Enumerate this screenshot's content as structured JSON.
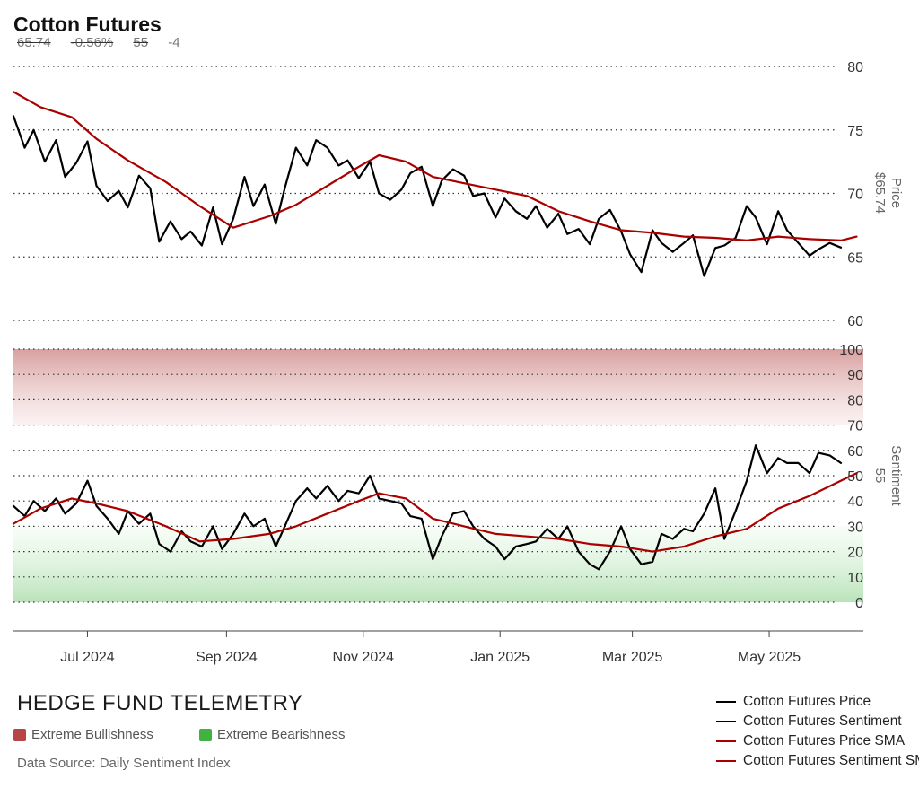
{
  "header": {
    "title": "Cotton Futures",
    "price": "65.74",
    "change_pct": "-0.56%",
    "sentiment": "55",
    "sentiment_change": "-4"
  },
  "footer": {
    "brand": "HEDGE FUND TELEMETRY",
    "extreme_bullish_label": "Extreme Bullishness",
    "extreme_bearish_label": "Extreme Bearishness",
    "source": "Data Source: Daily Sentiment Index"
  },
  "colors": {
    "price_line": "#000000",
    "sma_line": "#aa0000",
    "bullish": "#b84545",
    "bearish": "#3fb23f"
  },
  "legend": [
    {
      "label": "Cotton Futures Price",
      "color": "#000000"
    },
    {
      "label": "Cotton Futures Sentiment",
      "color": "#000000"
    },
    {
      "label": "Cotton Futures Price SMA",
      "color": "#aa0000"
    },
    {
      "label": "Cotton Futures Sentiment SMA",
      "color": "#aa0000"
    }
  ],
  "chart_data": [
    {
      "type": "line",
      "panel": "price",
      "ylabel": "Price",
      "last_value_label": "$65.74",
      "ylim": [
        60,
        80
      ],
      "yticks": [
        60,
        65,
        70,
        75,
        80
      ],
      "grid": "dotted horizontal",
      "x_range": [
        "2024-05-29",
        "2025-06-12"
      ],
      "x_ticks": [
        {
          "date": "2024-07-01",
          "label": "Jul 2024"
        },
        {
          "date": "2024-09-01",
          "label": "Sep 2024"
        },
        {
          "date": "2024-11-01",
          "label": "Nov 2024"
        },
        {
          "date": "2025-01-01",
          "label": "Jan 2025"
        },
        {
          "date": "2025-03-01",
          "label": "Mar 2025"
        },
        {
          "date": "2025-05-01",
          "label": "May 2025"
        }
      ],
      "series": [
        {
          "name": "Cotton Futures Price",
          "points": [
            [
              "2024-05-29",
              76.1
            ],
            [
              "2024-06-03",
              73.6
            ],
            [
              "2024-06-07",
              75.0
            ],
            [
              "2024-06-12",
              72.5
            ],
            [
              "2024-06-17",
              74.2
            ],
            [
              "2024-06-21",
              71.3
            ],
            [
              "2024-06-26",
              72.4
            ],
            [
              "2024-07-01",
              74.1
            ],
            [
              "2024-07-05",
              70.6
            ],
            [
              "2024-07-10",
              69.4
            ],
            [
              "2024-07-15",
              70.2
            ],
            [
              "2024-07-19",
              68.9
            ],
            [
              "2024-07-24",
              71.4
            ],
            [
              "2024-07-29",
              70.4
            ],
            [
              "2024-08-02",
              66.2
            ],
            [
              "2024-08-07",
              67.8
            ],
            [
              "2024-08-12",
              66.4
            ],
            [
              "2024-08-16",
              67.0
            ],
            [
              "2024-08-21",
              65.9
            ],
            [
              "2024-08-26",
              68.9
            ],
            [
              "2024-08-30",
              66.0
            ],
            [
              "2024-09-04",
              68.0
            ],
            [
              "2024-09-09",
              71.3
            ],
            [
              "2024-09-13",
              69.0
            ],
            [
              "2024-09-18",
              70.7
            ],
            [
              "2024-09-23",
              67.6
            ],
            [
              "2024-09-27",
              70.4
            ],
            [
              "2024-10-02",
              73.6
            ],
            [
              "2024-10-07",
              72.2
            ],
            [
              "2024-10-11",
              74.2
            ],
            [
              "2024-10-16",
              73.6
            ],
            [
              "2024-10-21",
              72.2
            ],
            [
              "2024-10-25",
              72.6
            ],
            [
              "2024-10-30",
              71.2
            ],
            [
              "2024-11-04",
              72.5
            ],
            [
              "2024-11-08",
              70.0
            ],
            [
              "2024-11-13",
              69.5
            ],
            [
              "2024-11-18",
              70.3
            ],
            [
              "2024-11-22",
              71.6
            ],
            [
              "2024-11-27",
              72.1
            ],
            [
              "2024-12-02",
              69.0
            ],
            [
              "2024-12-06",
              71.0
            ],
            [
              "2024-12-11",
              71.9
            ],
            [
              "2024-12-16",
              71.4
            ],
            [
              "2024-12-20",
              69.8
            ],
            [
              "2024-12-25",
              70.0
            ],
            [
              "2024-12-30",
              68.1
            ],
            [
              "2025-01-03",
              69.6
            ],
            [
              "2025-01-08",
              68.6
            ],
            [
              "2025-01-13",
              68.0
            ],
            [
              "2025-01-17",
              69.0
            ],
            [
              "2025-01-22",
              67.3
            ],
            [
              "2025-01-27",
              68.4
            ],
            [
              "2025-01-31",
              66.8
            ],
            [
              "2025-02-05",
              67.2
            ],
            [
              "2025-02-10",
              66.0
            ],
            [
              "2025-02-14",
              68.0
            ],
            [
              "2025-02-19",
              68.7
            ],
            [
              "2025-02-24",
              67.0
            ],
            [
              "2025-02-28",
              65.2
            ],
            [
              "2025-03-05",
              63.8
            ],
            [
              "2025-03-10",
              67.1
            ],
            [
              "2025-03-14",
              66.1
            ],
            [
              "2025-03-19",
              65.4
            ],
            [
              "2025-03-24",
              66.1
            ],
            [
              "2025-03-28",
              66.7
            ],
            [
              "2025-04-02",
              63.5
            ],
            [
              "2025-04-07",
              65.7
            ],
            [
              "2025-04-11",
              65.9
            ],
            [
              "2025-04-16",
              66.5
            ],
            [
              "2025-04-21",
              69.0
            ],
            [
              "2025-04-25",
              68.1
            ],
            [
              "2025-04-30",
              66.0
            ],
            [
              "2025-05-05",
              68.6
            ],
            [
              "2025-05-09",
              67.1
            ],
            [
              "2025-05-14",
              66.1
            ],
            [
              "2025-05-19",
              65.1
            ],
            [
              "2025-05-23",
              65.6
            ],
            [
              "2025-05-28",
              66.1
            ],
            [
              "2025-06-02",
              65.74
            ]
          ]
        },
        {
          "name": "Cotton Futures Price SMA",
          "points": [
            [
              "2024-05-29",
              78.0
            ],
            [
              "2024-06-10",
              76.8
            ],
            [
              "2024-06-24",
              76.0
            ],
            [
              "2024-07-05",
              74.3
            ],
            [
              "2024-07-19",
              72.6
            ],
            [
              "2024-08-05",
              70.9
            ],
            [
              "2024-08-20",
              69.0
            ],
            [
              "2024-09-04",
              67.3
            ],
            [
              "2024-09-20",
              68.2
            ],
            [
              "2024-10-02",
              69.1
            ],
            [
              "2024-10-16",
              70.6
            ],
            [
              "2024-10-30",
              72.1
            ],
            [
              "2024-11-08",
              73.0
            ],
            [
              "2024-11-20",
              72.5
            ],
            [
              "2024-12-02",
              71.3
            ],
            [
              "2024-12-16",
              70.8
            ],
            [
              "2024-12-30",
              70.3
            ],
            [
              "2025-01-13",
              69.8
            ],
            [
              "2025-01-27",
              68.6
            ],
            [
              "2025-02-10",
              67.8
            ],
            [
              "2025-02-24",
              67.1
            ],
            [
              "2025-03-10",
              66.9
            ],
            [
              "2025-03-24",
              66.6
            ],
            [
              "2025-04-07",
              66.5
            ],
            [
              "2025-04-21",
              66.3
            ],
            [
              "2025-05-05",
              66.6
            ],
            [
              "2025-05-19",
              66.4
            ],
            [
              "2025-06-02",
              66.3
            ],
            [
              "2025-06-09",
              66.6
            ]
          ]
        }
      ]
    },
    {
      "type": "line",
      "panel": "sentiment",
      "ylabel": "Sentiment",
      "last_value_label": "55",
      "ylim": [
        0,
        100
      ],
      "yticks": [
        0,
        10,
        20,
        30,
        40,
        50,
        60,
        70,
        80,
        90,
        100
      ],
      "zones": [
        {
          "name": "Extreme Bullishness",
          "range": [
            70,
            100
          ],
          "color": "#b84545"
        },
        {
          "name": "Extreme Bearishness",
          "range": [
            0,
            30
          ],
          "color": "#3fb23f"
        }
      ],
      "series": [
        {
          "name": "Cotton Futures Sentiment",
          "points": [
            [
              "2024-05-29",
              38
            ],
            [
              "2024-06-03",
              34
            ],
            [
              "2024-06-07",
              40
            ],
            [
              "2024-06-12",
              36
            ],
            [
              "2024-06-17",
              41
            ],
            [
              "2024-06-21",
              35
            ],
            [
              "2024-06-26",
              39
            ],
            [
              "2024-07-01",
              48
            ],
            [
              "2024-07-05",
              38
            ],
            [
              "2024-07-10",
              33
            ],
            [
              "2024-07-15",
              27
            ],
            [
              "2024-07-19",
              36
            ],
            [
              "2024-07-24",
              31
            ],
            [
              "2024-07-29",
              35
            ],
            [
              "2024-08-02",
              23
            ],
            [
              "2024-08-07",
              20
            ],
            [
              "2024-08-12",
              28
            ],
            [
              "2024-08-16",
              24
            ],
            [
              "2024-08-21",
              22
            ],
            [
              "2024-08-26",
              30
            ],
            [
              "2024-08-30",
              21
            ],
            [
              "2024-09-04",
              27
            ],
            [
              "2024-09-09",
              35
            ],
            [
              "2024-09-13",
              30
            ],
            [
              "2024-09-18",
              33
            ],
            [
              "2024-09-23",
              22
            ],
            [
              "2024-09-27",
              30
            ],
            [
              "2024-10-02",
              40
            ],
            [
              "2024-10-07",
              45
            ],
            [
              "2024-10-11",
              41
            ],
            [
              "2024-10-16",
              46
            ],
            [
              "2024-10-21",
              40
            ],
            [
              "2024-10-25",
              44
            ],
            [
              "2024-10-30",
              43
            ],
            [
              "2024-11-04",
              50
            ],
            [
              "2024-11-08",
              41
            ],
            [
              "2024-11-13",
              40
            ],
            [
              "2024-11-18",
              39
            ],
            [
              "2024-11-22",
              34
            ],
            [
              "2024-11-27",
              33
            ],
            [
              "2024-12-02",
              17
            ],
            [
              "2024-12-06",
              26
            ],
            [
              "2024-12-11",
              35
            ],
            [
              "2024-12-16",
              36
            ],
            [
              "2024-12-20",
              30
            ],
            [
              "2024-12-25",
              25
            ],
            [
              "2024-12-30",
              22
            ],
            [
              "2025-01-03",
              17
            ],
            [
              "2025-01-08",
              22
            ],
            [
              "2025-01-13",
              23
            ],
            [
              "2025-01-17",
              24
            ],
            [
              "2025-01-22",
              29
            ],
            [
              "2025-01-27",
              25
            ],
            [
              "2025-01-31",
              30
            ],
            [
              "2025-02-05",
              20
            ],
            [
              "2025-02-10",
              15
            ],
            [
              "2025-02-14",
              13
            ],
            [
              "2025-02-19",
              20
            ],
            [
              "2025-02-24",
              30
            ],
            [
              "2025-02-28",
              21
            ],
            [
              "2025-03-05",
              15
            ],
            [
              "2025-03-10",
              16
            ],
            [
              "2025-03-14",
              27
            ],
            [
              "2025-03-19",
              25
            ],
            [
              "2025-03-24",
              29
            ],
            [
              "2025-03-28",
              28
            ],
            [
              "2025-04-02",
              35
            ],
            [
              "2025-04-07",
              45
            ],
            [
              "2025-04-11",
              25
            ],
            [
              "2025-04-16",
              36
            ],
            [
              "2025-04-21",
              48
            ],
            [
              "2025-04-25",
              62
            ],
            [
              "2025-04-30",
              51
            ],
            [
              "2025-05-05",
              57
            ],
            [
              "2025-05-09",
              55
            ],
            [
              "2025-05-14",
              55
            ],
            [
              "2025-05-19",
              51
            ],
            [
              "2025-05-23",
              59
            ],
            [
              "2025-05-28",
              58
            ],
            [
              "2025-06-02",
              55
            ]
          ]
        },
        {
          "name": "Cotton Futures Sentiment SMA",
          "points": [
            [
              "2024-05-29",
              31
            ],
            [
              "2024-06-10",
              37
            ],
            [
              "2024-06-24",
              41
            ],
            [
              "2024-07-05",
              39
            ],
            [
              "2024-07-19",
              36
            ],
            [
              "2024-08-05",
              30
            ],
            [
              "2024-08-20",
              24
            ],
            [
              "2024-09-04",
              25
            ],
            [
              "2024-09-20",
              27
            ],
            [
              "2024-10-02",
              30
            ],
            [
              "2024-10-16",
              35
            ],
            [
              "2024-10-30",
              40
            ],
            [
              "2024-11-08",
              43
            ],
            [
              "2024-11-20",
              41
            ],
            [
              "2024-12-02",
              33
            ],
            [
              "2024-12-16",
              30
            ],
            [
              "2024-12-30",
              27
            ],
            [
              "2025-01-13",
              26
            ],
            [
              "2025-01-27",
              25
            ],
            [
              "2025-02-10",
              23
            ],
            [
              "2025-02-24",
              22
            ],
            [
              "2025-03-10",
              20
            ],
            [
              "2025-03-24",
              22
            ],
            [
              "2025-04-07",
              26
            ],
            [
              "2025-04-21",
              29
            ],
            [
              "2025-05-05",
              37
            ],
            [
              "2025-05-19",
              42
            ],
            [
              "2025-06-02",
              48
            ],
            [
              "2025-06-09",
              51
            ]
          ]
        }
      ]
    }
  ]
}
